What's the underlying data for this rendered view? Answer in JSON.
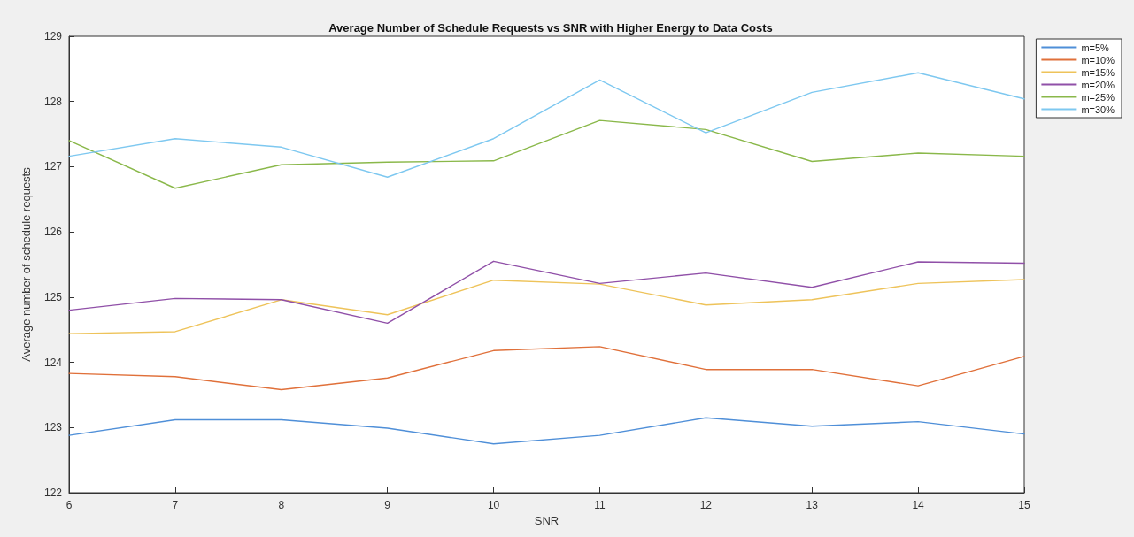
{
  "chart_data": {
    "type": "line",
    "title": "Average Number of Schedule Requests vs SNR with Higher Energy to Data Costs",
    "xlabel": "SNR",
    "ylabel": "Average number of schedule requests",
    "x": [
      6,
      7,
      8,
      9,
      10,
      11,
      12,
      13,
      14,
      15
    ],
    "series": [
      {
        "name": "m=5%",
        "color": "#4f8fd8",
        "values": [
          122.88,
          123.12,
          123.12,
          122.99,
          122.75,
          122.88,
          123.15,
          123.02,
          123.09,
          122.9
        ]
      },
      {
        "name": "m=10%",
        "color": "#e0703a",
        "values": [
          123.83,
          123.78,
          123.58,
          123.76,
          124.18,
          124.24,
          123.89,
          123.89,
          123.64,
          124.09
        ]
      },
      {
        "name": "m=15%",
        "color": "#eec35a",
        "values": [
          124.44,
          124.47,
          124.96,
          124.73,
          125.26,
          125.2,
          124.88,
          124.96,
          125.21,
          125.27
        ]
      },
      {
        "name": "m=20%",
        "color": "#9050a8",
        "values": [
          124.8,
          124.98,
          124.96,
          124.6,
          125.55,
          125.21,
          125.37,
          125.15,
          125.54,
          125.52
        ]
      },
      {
        "name": "m=25%",
        "color": "#8ab84a",
        "values": [
          127.4,
          126.67,
          127.03,
          127.07,
          127.09,
          127.71,
          127.57,
          127.08,
          127.21,
          127.16
        ]
      },
      {
        "name": "m=30%",
        "color": "#7ec8f0",
        "values": [
          127.16,
          127.43,
          127.3,
          126.84,
          127.43,
          128.33,
          127.52,
          128.14,
          128.44,
          128.04
        ]
      }
    ],
    "xlim": [
      6,
      15
    ],
    "xticks": [
      6,
      7,
      8,
      9,
      10,
      11,
      12,
      13,
      14,
      15
    ],
    "ylim": [
      122,
      129
    ],
    "yticks": [
      122,
      123,
      124,
      125,
      126,
      127,
      128,
      129
    ],
    "grid": false,
    "legend": "top right",
    "marker": "none",
    "line_style": "solid"
  }
}
